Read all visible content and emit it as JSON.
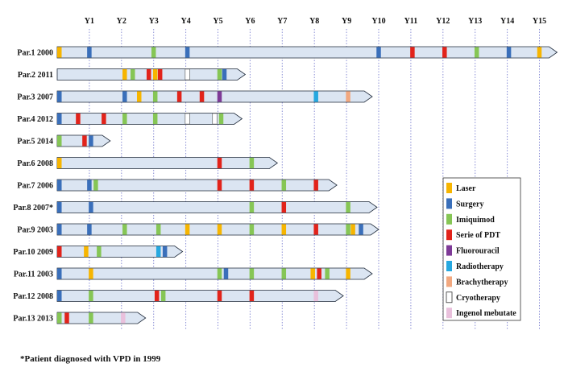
{
  "diagram": {
    "years": [
      "Y1",
      "Y2",
      "Y3",
      "Y4",
      "Y5",
      "Y6",
      "Y7",
      "Y8",
      "Y9",
      "Y10",
      "Y11",
      "Y12",
      "Y13",
      "Y14",
      "Y15"
    ],
    "treatments": [
      {
        "id": "laser",
        "label": "Laser",
        "color": "#f7b500"
      },
      {
        "id": "surgery",
        "label": "Surgery",
        "color": "#3a6fba"
      },
      {
        "id": "imiquimod",
        "label": "Imiquimod",
        "color": "#86c655"
      },
      {
        "id": "pdt",
        "label": "Serie of PDT",
        "color": "#e2231a"
      },
      {
        "id": "fluorouracil",
        "label": "Fluorouracil",
        "color": "#7e3a97"
      },
      {
        "id": "radiotherapy",
        "label": "Radiotherapy",
        "color": "#26a8e0"
      },
      {
        "id": "brachytherapy",
        "label": "Brachytherapy",
        "color": "#f2a87f"
      },
      {
        "id": "cryotherapy",
        "label": "Cryotherapy",
        "color": "#ffffff"
      },
      {
        "id": "ingenol",
        "label": "Ingenol mebutate",
        "color": "#e9c0dc"
      }
    ],
    "patients": [
      {
        "label": "Par.1 2000",
        "end": 15.3,
        "events": [
          {
            "t": 0.0,
            "type": "laser"
          },
          {
            "t": 1.0,
            "type": "surgery"
          },
          {
            "t": 3.0,
            "type": "imiquimod"
          },
          {
            "t": 4.05,
            "type": "surgery"
          },
          {
            "t": 10.0,
            "type": "surgery"
          },
          {
            "t": 11.05,
            "type": "pdt"
          },
          {
            "t": 12.05,
            "type": "pdt"
          },
          {
            "t": 13.05,
            "type": "imiquimod"
          },
          {
            "t": 14.05,
            "type": "surgery"
          },
          {
            "t": 15.0,
            "type": "laser"
          }
        ]
      },
      {
        "label": "Par.2 2011",
        "end": 5.6,
        "events": [
          {
            "t": 2.1,
            "type": "laser"
          },
          {
            "t": 2.35,
            "type": "imiquimod"
          },
          {
            "t": 2.85,
            "type": "pdt"
          },
          {
            "t": 3.05,
            "type": "laser"
          },
          {
            "t": 3.2,
            "type": "pdt"
          },
          {
            "t": 4.05,
            "type": "cryotherapy"
          },
          {
            "t": 5.05,
            "type": "imiquimod"
          },
          {
            "t": 5.2,
            "type": "surgery"
          }
        ]
      },
      {
        "label": "Par.3 2007",
        "end": 9.55,
        "events": [
          {
            "t": 0.0,
            "type": "surgery"
          },
          {
            "t": 2.1,
            "type": "surgery"
          },
          {
            "t": 2.55,
            "type": "laser"
          },
          {
            "t": 3.05,
            "type": "imiquimod"
          },
          {
            "t": 3.8,
            "type": "pdt"
          },
          {
            "t": 4.5,
            "type": "pdt"
          },
          {
            "t": 5.05,
            "type": "fluorouracil"
          },
          {
            "t": 8.05,
            "type": "radiotherapy"
          },
          {
            "t": 9.05,
            "type": "brachytherapy"
          }
        ]
      },
      {
        "label": "Par.4 2012",
        "end": 5.5,
        "events": [
          {
            "t": 0.0,
            "type": "surgery"
          },
          {
            "t": 0.65,
            "type": "pdt"
          },
          {
            "t": 1.45,
            "type": "pdt"
          },
          {
            "t": 2.1,
            "type": "imiquimod"
          },
          {
            "t": 3.05,
            "type": "imiquimod"
          },
          {
            "t": 4.05,
            "type": "cryotherapy"
          },
          {
            "t": 4.9,
            "type": "cryotherapy"
          },
          {
            "t": 5.1,
            "type": "imiquimod"
          }
        ]
      },
      {
        "label": "Par.5 2014",
        "end": 1.4,
        "events": [
          {
            "t": 0.0,
            "type": "imiquimod"
          },
          {
            "t": 0.85,
            "type": "pdt"
          },
          {
            "t": 1.05,
            "type": "surgery"
          }
        ]
      },
      {
        "label": "Par.6 2008",
        "end": 6.6,
        "events": [
          {
            "t": 0.0,
            "type": "laser"
          },
          {
            "t": 5.05,
            "type": "pdt"
          },
          {
            "t": 6.05,
            "type": "imiquimod"
          }
        ]
      },
      {
        "label": "Par.7 2006",
        "end": 8.45,
        "events": [
          {
            "t": 0.0,
            "type": "surgery"
          },
          {
            "t": 1.0,
            "type": "surgery"
          },
          {
            "t": 1.2,
            "type": "imiquimod"
          },
          {
            "t": 5.05,
            "type": "pdt"
          },
          {
            "t": 6.05,
            "type": "pdt"
          },
          {
            "t": 7.05,
            "type": "imiquimod"
          },
          {
            "t": 8.05,
            "type": "pdt"
          }
        ]
      },
      {
        "label": "Par.8 2007*",
        "end": 9.7,
        "events": [
          {
            "t": 0.0,
            "type": "surgery"
          },
          {
            "t": 1.05,
            "type": "surgery"
          },
          {
            "t": 6.05,
            "type": "imiquimod"
          },
          {
            "t": 7.05,
            "type": "pdt"
          },
          {
            "t": 9.05,
            "type": "imiquimod"
          }
        ]
      },
      {
        "label": "Par.9 2003",
        "end": 9.75,
        "events": [
          {
            "t": 0.0,
            "type": "surgery"
          },
          {
            "t": 1.0,
            "type": "surgery"
          },
          {
            "t": 2.1,
            "type": "imiquimod"
          },
          {
            "t": 3.15,
            "type": "imiquimod"
          },
          {
            "t": 4.05,
            "type": "laser"
          },
          {
            "t": 5.05,
            "type": "laser"
          },
          {
            "t": 6.05,
            "type": "imiquimod"
          },
          {
            "t": 7.05,
            "type": "laser"
          },
          {
            "t": 8.05,
            "type": "pdt"
          },
          {
            "t": 9.05,
            "type": "imiquimod"
          },
          {
            "t": 9.2,
            "type": "laser"
          },
          {
            "t": 9.45,
            "type": "surgery"
          }
        ]
      },
      {
        "label": "Par.10 2009",
        "end": 3.65,
        "events": [
          {
            "t": 0.0,
            "type": "pdt"
          },
          {
            "t": 0.9,
            "type": "laser"
          },
          {
            "t": 1.3,
            "type": "imiquimod"
          },
          {
            "t": 3.15,
            "type": "radiotherapy"
          },
          {
            "t": 3.35,
            "type": "surgery"
          }
        ]
      },
      {
        "label": "Par.11 2003",
        "end": 9.55,
        "events": [
          {
            "t": 0.0,
            "type": "surgery"
          },
          {
            "t": 1.05,
            "type": "laser"
          },
          {
            "t": 5.05,
            "type": "imiquimod"
          },
          {
            "t": 5.25,
            "type": "surgery"
          },
          {
            "t": 6.05,
            "type": "imiquimod"
          },
          {
            "t": 7.05,
            "type": "imiquimod"
          },
          {
            "t": 7.95,
            "type": "laser"
          },
          {
            "t": 8.15,
            "type": "pdt"
          },
          {
            "t": 8.4,
            "type": "imiquimod"
          },
          {
            "t": 9.05,
            "type": "laser"
          }
        ]
      },
      {
        "label": "Par.12 2008",
        "end": 8.65,
        "events": [
          {
            "t": 0.0,
            "type": "surgery"
          },
          {
            "t": 1.05,
            "type": "imiquimod"
          },
          {
            "t": 3.1,
            "type": "pdt"
          },
          {
            "t": 3.3,
            "type": "imiquimod"
          },
          {
            "t": 5.05,
            "type": "pdt"
          },
          {
            "t": 6.05,
            "type": "pdt"
          },
          {
            "t": 8.05,
            "type": "ingenol"
          }
        ]
      },
      {
        "label": "Par.13 2013",
        "end": 2.5,
        "events": [
          {
            "t": 0.0,
            "type": "imiquimod"
          },
          {
            "t": 0.3,
            "type": "pdt"
          },
          {
            "t": 1.05,
            "type": "imiquimod"
          },
          {
            "t": 2.05,
            "type": "ingenol"
          }
        ]
      }
    ],
    "footnote": "*Patient diagnosed with VPD in 1999",
    "colors": {
      "bar_fill": "#dbe5f2",
      "bar_stroke": "#1f2a3a",
      "gridline": "#8b8fd6"
    }
  }
}
